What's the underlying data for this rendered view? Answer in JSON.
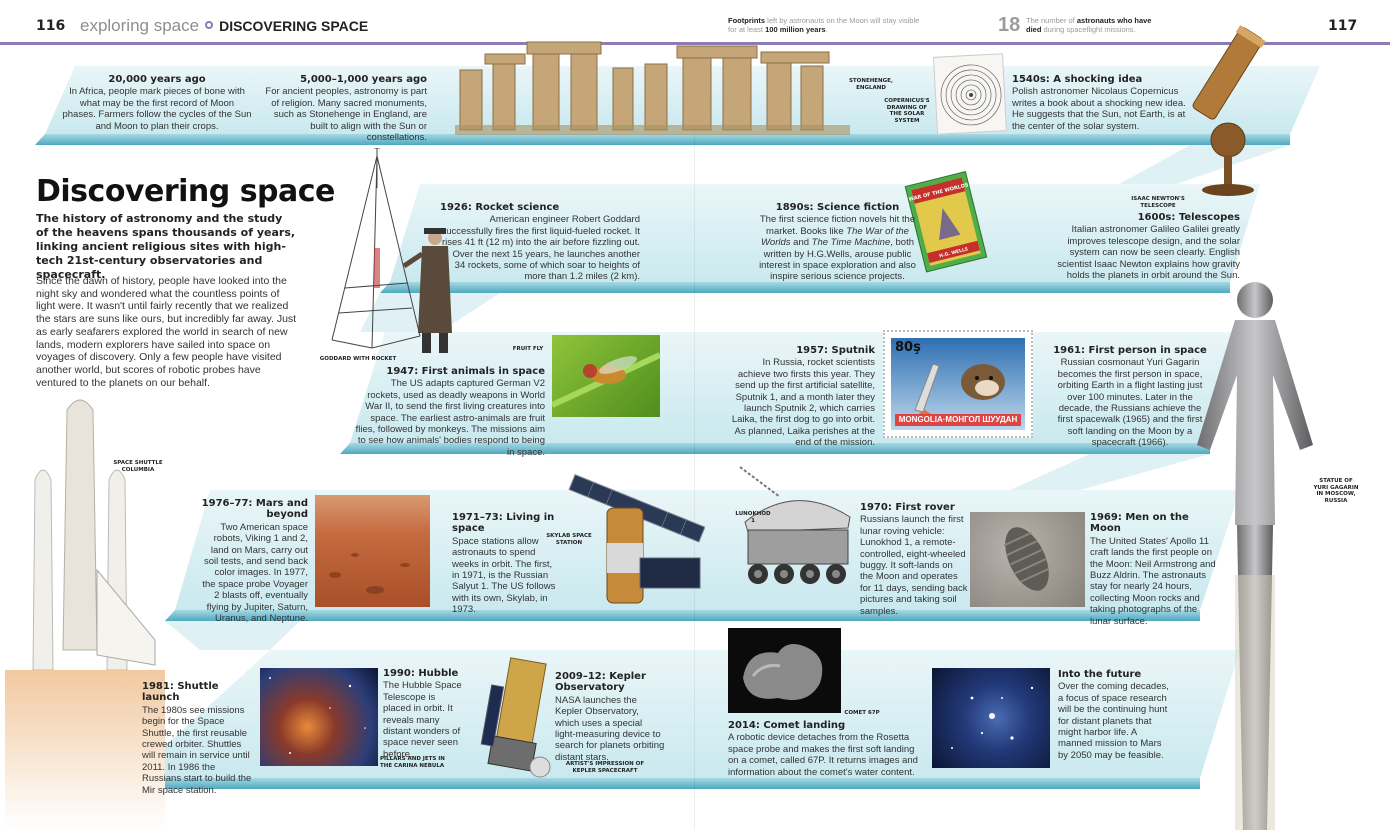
{
  "header": {
    "left_page_number": "116",
    "running_head": "exploring space",
    "section": "DISCOVERING SPACE",
    "fact1_bold": "Footprints",
    "fact1_mid": " left by astronauts on the Moon will stay visible for at least ",
    "fact1_bold2": "100 million years",
    "fact1_end": ".",
    "fact2_number": "18",
    "fact2_pre": "The number of ",
    "fact2_bold": "astronauts who have died",
    "fact2_end": " during spaceflight missions.",
    "right_page_number": "117"
  },
  "title": "Discovering space",
  "intro": "The history of astronomy and the study of the heavens spans thousands of years, linking ancient religious sites with high-tech 21st-century observatories and spacecraft.",
  "body": "Since the dawn of history, people have looked into the night sky and wondered what the countless points of light were. It wasn't until fairly recently that we realized the stars are suns like ours, but incredibly far away. Just as early seafarers explored the world in search of new lands, modern explorers have sailed into space on voyages of discovery. Only a few people have visited another world, but scores of robotic probes have ventured to the planets on our behalf.",
  "entries": {
    "e20000": {
      "title": "20,000 years ago",
      "text": "In Africa, people mark pieces of bone with what may be the first record of Moon phases. Farmers follow the cycles of the Sun and Moon to plan their crops."
    },
    "e5000": {
      "title": "5,000–1,000 years ago",
      "text": "For ancient peoples, astronomy is part of religion. Many sacred monuments, such as Stonehenge in England, are built to align with the Sun or constellations."
    },
    "e1540": {
      "title": "1540s: A shocking idea",
      "text": "Polish astronomer Nicolaus Copernicus writes a book about a shocking new idea. He suggests that the Sun, not Earth, is at the center of the solar system."
    },
    "e1926": {
      "title": "1926: Rocket science",
      "text": "American engineer Robert Goddard successfully fires the first liquid-fueled rocket. It rises 41 ft (12 m) into the air before fizzling out. Over the next 15 years, he launches another 34 rockets, some of which soar to heights of more than 1.2 miles (2 km)."
    },
    "e1890": {
      "title": "1890s: Science fiction",
      "text_a": "The first science fiction novels hit the market. Books like ",
      "book1": "The War of the Worlds",
      "text_b": " and ",
      "book2": "The Time Machine",
      "text_c": ", both written by H.G.Wells, arouse public interest in space exploration and also inspire serious science projects."
    },
    "e1600": {
      "title": "1600s: Telescopes",
      "text": "Italian astronomer Galileo Galilei greatly improves telescope design, and the solar system can now be seen clearly. English scientist Isaac Newton explains how gravity holds the planets in orbit around the Sun."
    },
    "e1947": {
      "title": "1947: First animals in space",
      "text": "The US adapts captured German V2 rockets, used as deadly weapons in World War II, to send the first living creatures into space. The earliest astro-animals are fruit flies, followed by monkeys. The missions aim to see how animals' bodies respond to being in space."
    },
    "e1957": {
      "title": "1957: Sputnik",
      "text": "In Russia, rocket scientists achieve two firsts this year. They send up the first artificial satellite, Sputnik 1, and a month later they launch Sputnik 2, which carries Laika, the first dog to go into orbit. As planned, Laika perishes at the end of the mission."
    },
    "e1961": {
      "title": "1961: First person in space",
      "text": "Russian cosmonaut Yuri Gagarin becomes the first person in space, orbiting Earth in a flight lasting just over 100 minutes. Later in the decade, the Russians achieve the first spacewalk (1965) and the first soft landing on the Moon by a spacecraft (1966)."
    },
    "e1976": {
      "title": "1976–77: Mars and beyond",
      "text": "Two American space robots, Viking 1 and 2, land on Mars, carry out soil tests, and send back color images. In 1977, the space probe Voyager 2 blasts off, eventually flying by Jupiter, Saturn, Uranus, and Neptune."
    },
    "e1971": {
      "title": "1971–73: Living in space",
      "text": "Space stations allow astronauts to spend weeks in orbit. The first, in 1971, is the Russian Salyut 1. The US follows with its own, Skylab, in 1973."
    },
    "e1970": {
      "title": "1970: First rover",
      "text": "Russians launch the first lunar roving vehicle: Lunokhod 1, a remote-controlled, eight-wheeled buggy. It soft-lands on the Moon and operates for 11 days, sending back pictures and taking soil samples."
    },
    "e1969": {
      "title": "1969: Men on the Moon",
      "text": "The United States' Apollo 11 craft lands the first people on the Moon: Neil Armstrong and Buzz Aldrin. The astronauts stay for nearly 24 hours, collecting Moon rocks and taking photographs of the lunar surface."
    },
    "e1981": {
      "title": "1981: Shuttle launch",
      "text": "The 1980s see missions begin for the Space Shuttle, the first reusable crewed orbiter. Shuttles will remain in service until 2011. In 1986 the Russians start to build the Mir space station."
    },
    "e1990": {
      "title": "1990: Hubble",
      "text": "The Hubble Space Telescope is placed in orbit. It reveals many distant wonders of space never seen before."
    },
    "e2009": {
      "title": "2009–12: Kepler Observatory",
      "text": "NASA launches the Kepler Observatory, which uses a special light-measuring device to search for planets orbiting distant stars."
    },
    "e2014": {
      "title": "2014: Comet landing",
      "text": "A robotic device detaches from the Rosetta space probe and makes the first soft landing on a comet, called 67P. It returns images and information about the comet's water content."
    },
    "efuture": {
      "title": "Into the future",
      "text": "Over the coming decades, a focus of space research will be the continuing hunt for distant planets that might harbor life. A manned mission to Mars by 2050 may be feasible."
    }
  },
  "captions": {
    "stonehenge": "STONEHENGE, ENGLAND",
    "copernicus": "COPERNICUS'S DRAWING OF THE SOLAR SYSTEM",
    "newton": "ISAAC NEWTON'S TELESCOPE",
    "goddard": "GODDARD WITH ROCKET",
    "fruitfly": "FRUIT FLY",
    "shuttle": "SPACE SHUTTLE COLUMBIA",
    "gagarin": "STATUE OF YURI GAGARIN IN MOSCOW, RUSSIA",
    "skylab": "SKYLAB SPACE STATION",
    "lunokhod": "LUNOKHOD 1",
    "comet": "COMET 67P",
    "pillars": "PILLARS AND JETS IN THE CARINA NEBULA",
    "kepler": "ARTIST'S IMPRESSION OF KEPLER SPACECRAFT"
  },
  "stamp": {
    "value": "80ş",
    "country": "MONGOLIA·МОНГОЛ ШУУДАН"
  },
  "book": {
    "title": "WAR OF THE WORLDS",
    "author": "H.G. WELLS"
  }
}
